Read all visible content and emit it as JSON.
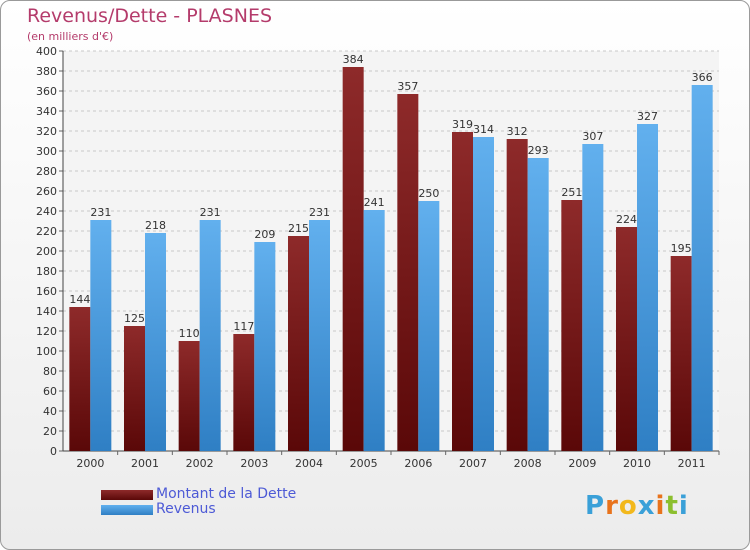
{
  "chart_data": {
    "type": "bar",
    "title": "Revenus/Dette - PLASNES",
    "subtitle": "(en milliers d'€)",
    "categories": [
      "2000",
      "2001",
      "2002",
      "2003",
      "2004",
      "2005",
      "2006",
      "2007",
      "2008",
      "2009",
      "2010",
      "2011"
    ],
    "series": [
      {
        "name": "Montant de la Dette",
        "values": [
          144,
          125,
          110,
          117,
          215,
          384,
          357,
          319,
          312,
          251,
          224,
          195
        ],
        "color": "#7a1e1e"
      },
      {
        "name": "Revenus",
        "values": [
          231,
          218,
          231,
          209,
          231,
          241,
          250,
          314,
          293,
          307,
          327,
          366
        ],
        "color": "#4f9fe0"
      }
    ],
    "ylim": [
      0,
      400
    ],
    "ytick_step": 20,
    "grid": true,
    "legend_position": "bottom-left"
  },
  "logo": {
    "letters": [
      "P",
      "r",
      "o",
      "x",
      "i",
      "t",
      "i"
    ],
    "colors": [
      "#3aa0d8",
      "#e8731c",
      "#f2b81c",
      "#3aa0d8",
      "#e8731c",
      "#8cbf2e",
      "#3aa0d8"
    ]
  }
}
